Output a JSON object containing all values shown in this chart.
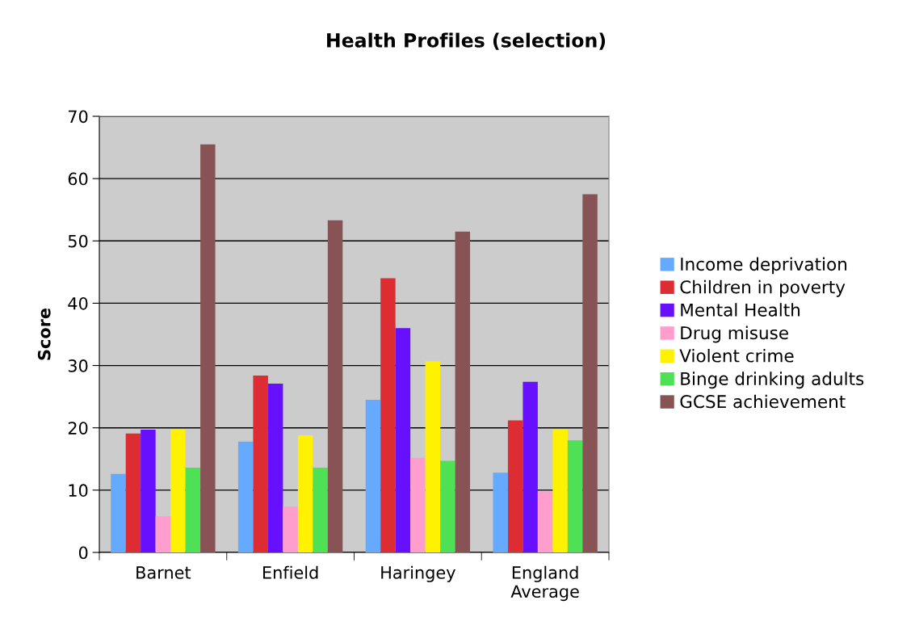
{
  "chart_data": {
    "type": "bar",
    "title": "Health Profiles (selection)",
    "ylabel": "Score",
    "categories": [
      "Barnet",
      "Enfield",
      "Haringey",
      "England\nAverage"
    ],
    "series": [
      {
        "name": "Income deprivation",
        "color": "#66aaff",
        "values": [
          12.6,
          17.8,
          24.5,
          12.8
        ]
      },
      {
        "name": "Children in poverty",
        "color": "#dd2d33",
        "values": [
          19.1,
          28.4,
          44.0,
          21.2
        ]
      },
      {
        "name": "Mental Health",
        "color": "#6610ff",
        "values": [
          19.7,
          27.1,
          36.0,
          27.4
        ]
      },
      {
        "name": "Drug misuse",
        "color": "#ff9dcc",
        "values": [
          5.8,
          7.4,
          15.2,
          9.8
        ]
      },
      {
        "name": "Violent crime",
        "color": "#fff200",
        "values": [
          19.7,
          18.8,
          30.7,
          19.7
        ]
      },
      {
        "name": "Binge drinking adults",
        "color": "#4ee155",
        "values": [
          13.6,
          13.6,
          14.7,
          18.0
        ]
      },
      {
        "name": "GCSE achievement",
        "color": "#875355",
        "values": [
          65.5,
          53.3,
          51.5,
          57.5
        ]
      }
    ],
    "ylim": [
      0,
      70
    ],
    "yticks": [
      0,
      10,
      20,
      30,
      40,
      50,
      60,
      70
    ],
    "grid": "y",
    "legend": "right"
  }
}
